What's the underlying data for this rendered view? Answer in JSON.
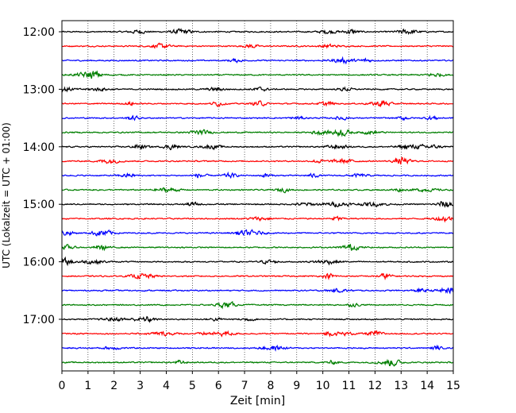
{
  "chart_data": {
    "type": "line",
    "title": "",
    "xlabel": "Zeit  [min]",
    "ylabel": "UTC (Lokalzeit = UTC + 01:00)",
    "xlim": [
      0,
      15
    ],
    "x_ticks": [
      "0",
      "1",
      "2",
      "3",
      "4",
      "5",
      "6",
      "7",
      "8",
      "9",
      "10",
      "11",
      "12",
      "13",
      "14",
      "15"
    ],
    "y_ticks": [
      "12:00",
      "13:00",
      "14:00",
      "15:00",
      "16:00",
      "17:00"
    ],
    "grid": "vertical dotted",
    "trace_interval_minutes": 15,
    "trace_colors": [
      "#000000",
      "#ff0000",
      "#0000ff",
      "#007f00"
    ],
    "series": [
      {
        "start": "12:00",
        "color": "#000000"
      },
      {
        "start": "12:15",
        "color": "#ff0000"
      },
      {
        "start": "12:30",
        "color": "#0000ff"
      },
      {
        "start": "12:45",
        "color": "#007f00"
      },
      {
        "start": "13:00",
        "color": "#000000"
      },
      {
        "start": "13:15",
        "color": "#ff0000"
      },
      {
        "start": "13:30",
        "color": "#0000ff"
      },
      {
        "start": "13:45",
        "color": "#007f00"
      },
      {
        "start": "14:00",
        "color": "#000000"
      },
      {
        "start": "14:15",
        "color": "#ff0000"
      },
      {
        "start": "14:30",
        "color": "#0000ff"
      },
      {
        "start": "14:45",
        "color": "#007f00"
      },
      {
        "start": "15:00",
        "color": "#000000"
      },
      {
        "start": "15:15",
        "color": "#ff0000"
      },
      {
        "start": "15:30",
        "color": "#0000ff"
      },
      {
        "start": "15:45",
        "color": "#007f00"
      },
      {
        "start": "16:00",
        "color": "#000000"
      },
      {
        "start": "16:15",
        "color": "#ff0000"
      },
      {
        "start": "16:30",
        "color": "#0000ff"
      },
      {
        "start": "16:45",
        "color": "#007f00"
      },
      {
        "start": "17:00",
        "color": "#000000"
      },
      {
        "start": "17:15",
        "color": "#ff0000"
      },
      {
        "start": "17:30",
        "color": "#0000ff"
      },
      {
        "start": "17:45",
        "color": "#007f00"
      }
    ]
  }
}
